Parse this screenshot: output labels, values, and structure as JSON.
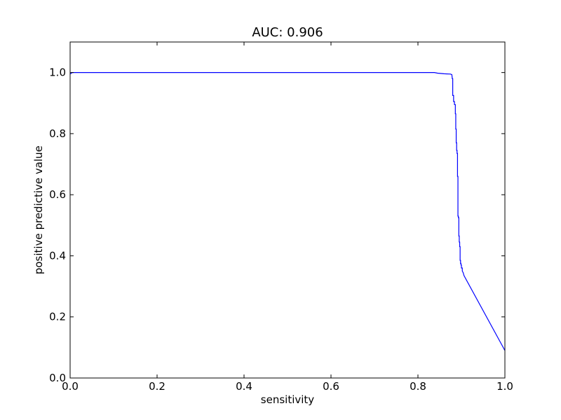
{
  "chart_data": {
    "type": "line",
    "title": "AUC: 0.906",
    "xlabel": "sensitivity",
    "ylabel": "positive predictive value",
    "xlim": [
      0.0,
      1.0
    ],
    "ylim": [
      0.0,
      1.1
    ],
    "grid": false,
    "x_ticks": [
      0.0,
      0.2,
      0.4,
      0.6,
      0.8,
      1.0
    ],
    "x_tick_labels": [
      "0.0",
      "0.2",
      "0.4",
      "0.6",
      "0.8",
      "1.0"
    ],
    "y_ticks": [
      0.0,
      0.2,
      0.4,
      0.6,
      0.8,
      1.0
    ],
    "y_tick_labels": [
      "0.0",
      "0.2",
      "0.4",
      "0.6",
      "0.8",
      "1.0"
    ],
    "colors": {
      "line": "#0000ff",
      "axes": "#000000"
    },
    "series": [
      {
        "x": [
          0.0,
          0.005,
          0.838,
          0.845,
          0.86,
          0.875,
          0.878,
          0.879,
          0.88,
          0.88,
          0.882,
          0.882,
          0.884,
          0.884,
          0.886,
          0.886,
          0.887,
          0.887,
          0.888,
          0.888,
          0.889,
          0.889,
          0.89,
          0.89,
          0.891,
          0.891,
          0.892,
          0.892,
          0.893,
          0.893,
          0.894,
          0.894,
          0.895,
          0.895,
          0.896,
          0.896,
          0.897,
          0.897,
          0.898,
          0.898,
          0.899,
          0.899,
          0.9,
          0.9,
          0.902,
          0.902,
          0.904,
          0.905,
          0.906,
          1.0
        ],
        "y": [
          0.995,
          1.0,
          1.0,
          0.998,
          0.996,
          0.995,
          0.993,
          0.98,
          0.98,
          0.925,
          0.925,
          0.905,
          0.905,
          0.895,
          0.895,
          0.865,
          0.865,
          0.815,
          0.815,
          0.77,
          0.77,
          0.745,
          0.745,
          0.735,
          0.735,
          0.66,
          0.66,
          0.53,
          0.53,
          0.525,
          0.525,
          0.465,
          0.465,
          0.445,
          0.445,
          0.43,
          0.43,
          0.385,
          0.385,
          0.375,
          0.375,
          0.37,
          0.37,
          0.36,
          0.36,
          0.35,
          0.345,
          0.34,
          0.335,
          0.09
        ]
      }
    ]
  }
}
